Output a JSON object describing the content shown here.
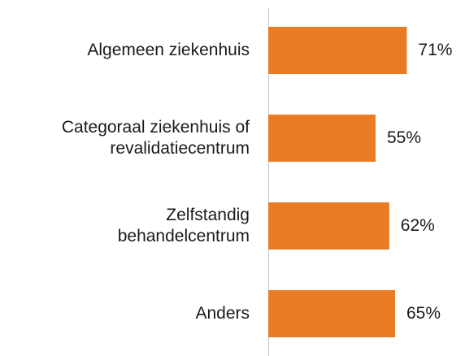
{
  "chart_data": {
    "type": "bar",
    "orientation": "horizontal",
    "categories": [
      "Algemeen ziekenhuis",
      "Categoraal ziekenhuis of\nrevalidatiecentrum",
      "Zelfstandig\nbehandelcentrum",
      "Anders"
    ],
    "values": [
      71,
      55,
      62,
      65
    ],
    "value_labels": [
      "71%",
      "55%",
      "62%",
      "65%"
    ],
    "color": "#e97b24"
  }
}
